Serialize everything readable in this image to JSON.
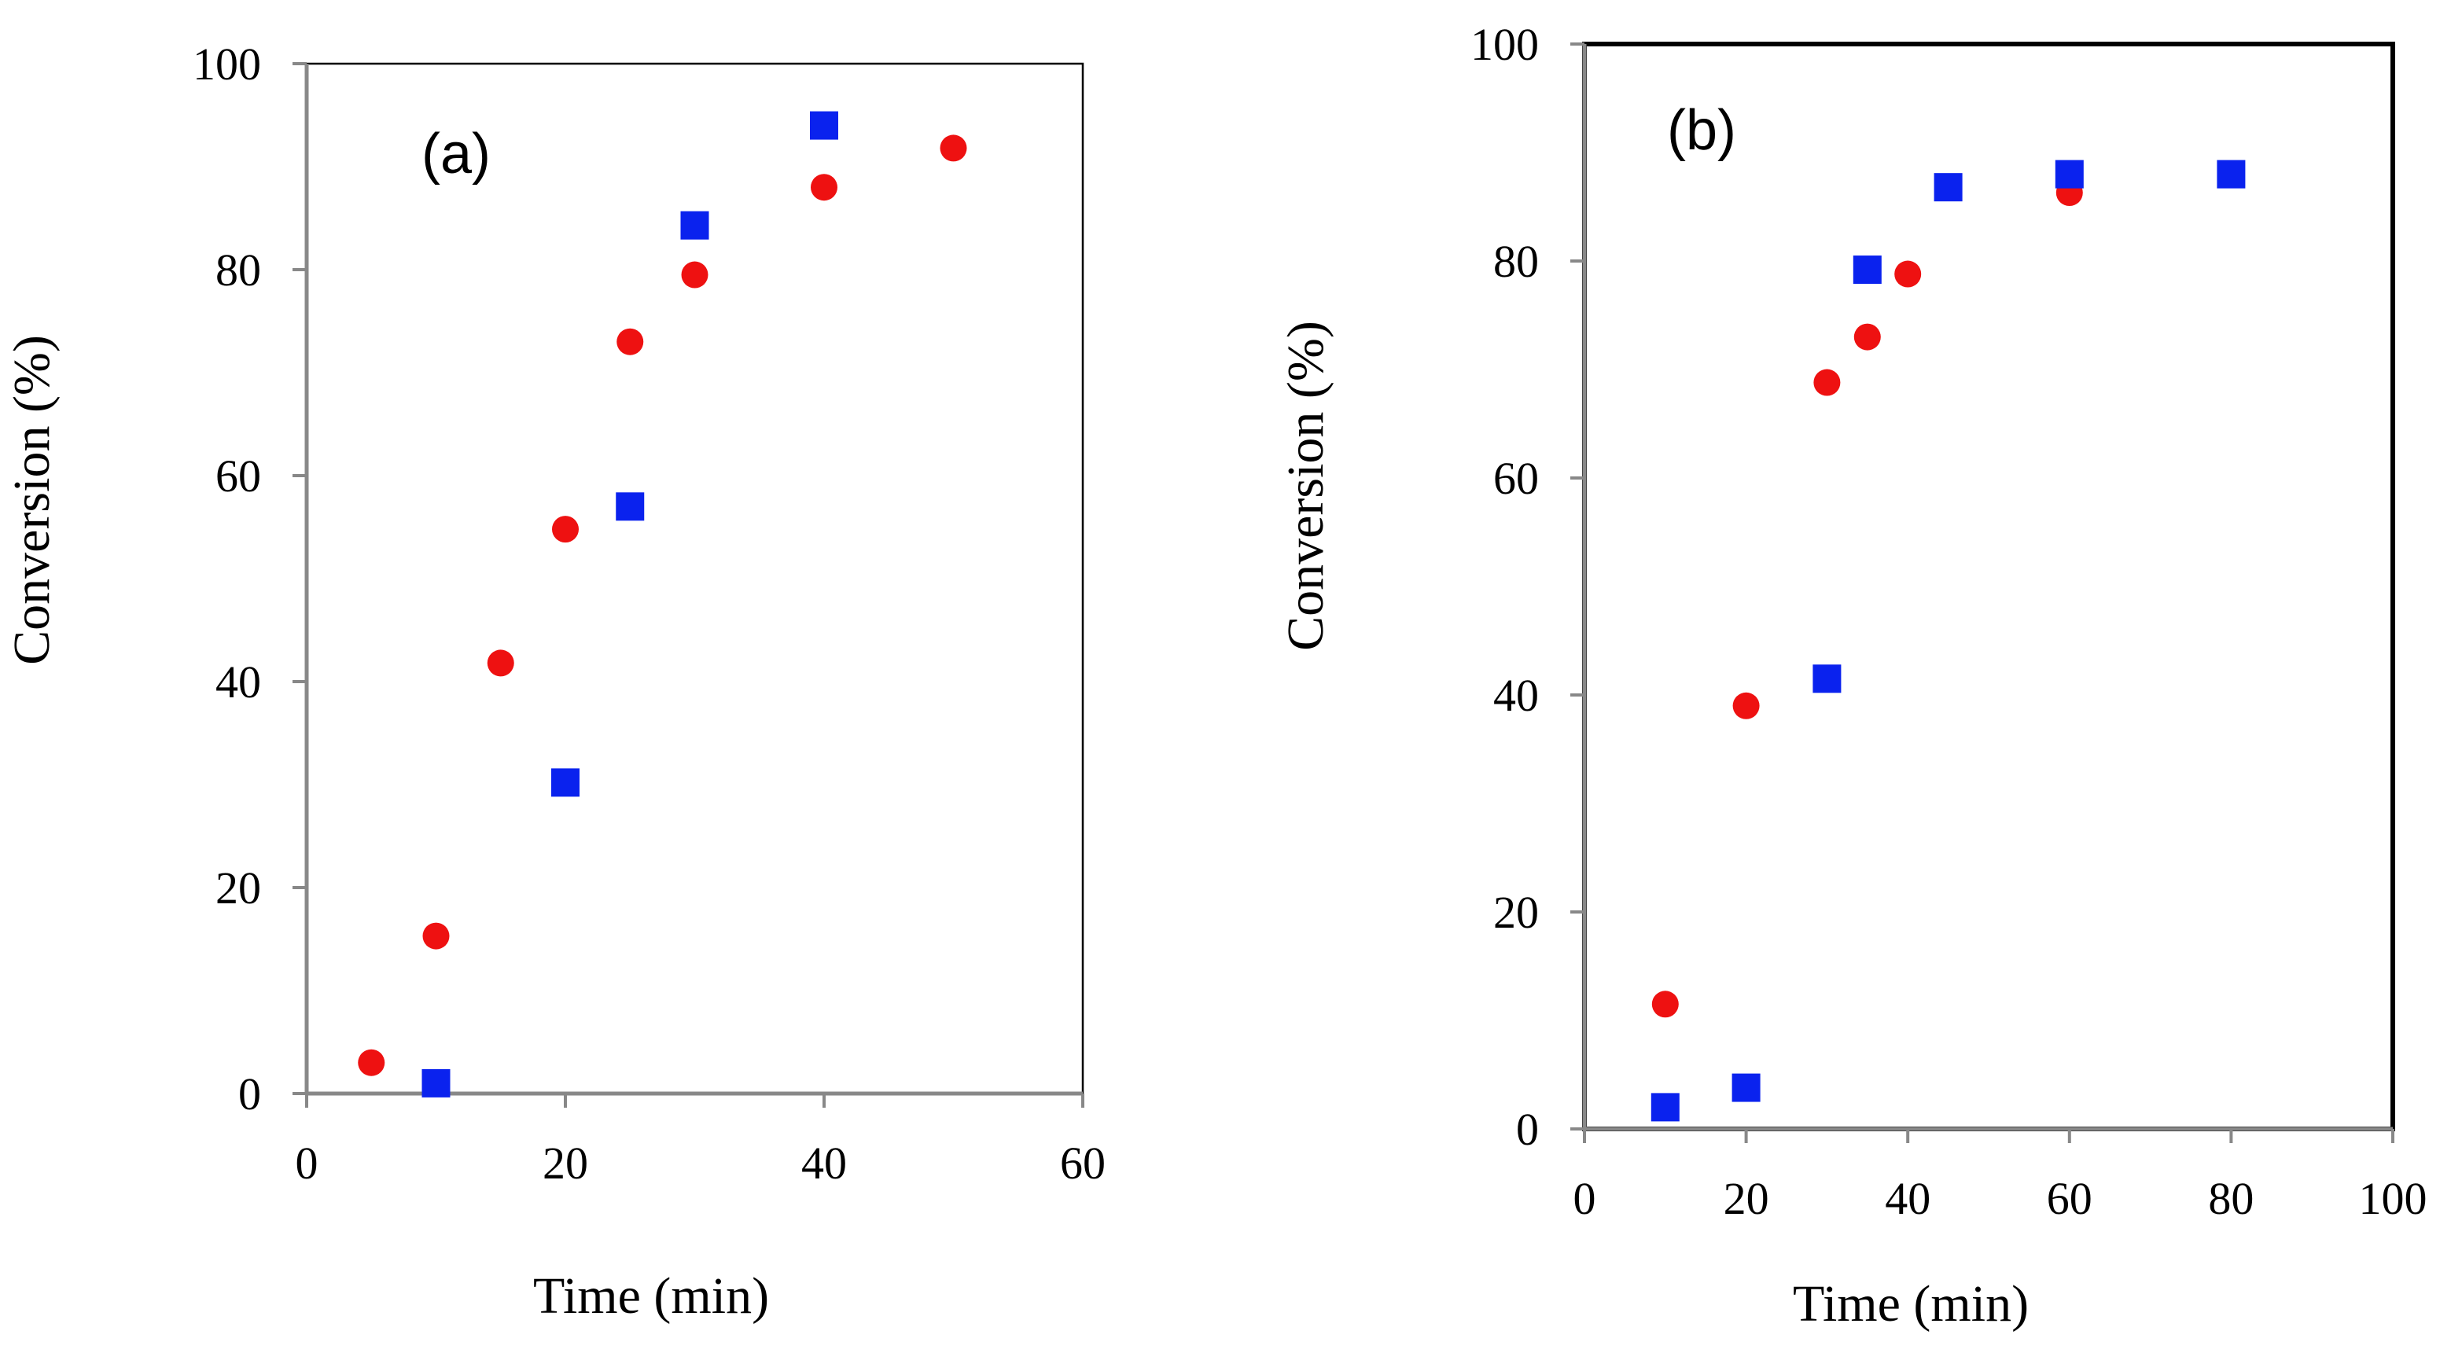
{
  "chart_data": [
    {
      "type": "scatter",
      "panel_label": "(a)",
      "xlabel": "Time (min)",
      "ylabel": "Conversion (%)",
      "xlim": [
        0,
        60
      ],
      "ylim": [
        0,
        100
      ],
      "xticks": [
        "0",
        "20",
        "40",
        "60"
      ],
      "yticks": [
        "0",
        "20",
        "40",
        "60",
        "80",
        "100"
      ],
      "grid": false,
      "series": [
        {
          "name": "circles",
          "marker": "circle",
          "color": "#ee1111",
          "points": [
            [
              5,
              3
            ],
            [
              10,
              15.3
            ],
            [
              15,
              41.8
            ],
            [
              20,
              54.8
            ],
            [
              25,
              73
            ],
            [
              30,
              79.5
            ],
            [
              40,
              88
            ],
            [
              50,
              91.8
            ]
          ]
        },
        {
          "name": "squares",
          "marker": "square",
          "color": "#0a22ee",
          "points": [
            [
              10,
              1
            ],
            [
              20,
              30.2
            ],
            [
              25,
              57
            ],
            [
              30,
              84.3
            ],
            [
              40,
              94
            ]
          ]
        }
      ]
    },
    {
      "type": "scatter",
      "panel_label": "(b)",
      "xlabel": "Time (min)",
      "ylabel": "Conversion (%)",
      "xlim": [
        0,
        100
      ],
      "ylim": [
        0,
        100
      ],
      "xticks": [
        "0",
        "20",
        "40",
        "60",
        "80",
        "100"
      ],
      "yticks": [
        "0",
        "20",
        "40",
        "60",
        "80",
        "100"
      ],
      "grid": false,
      "series": [
        {
          "name": "circles",
          "marker": "circle",
          "color": "#ee1111",
          "points": [
            [
              10,
              11.5
            ],
            [
              20,
              39
            ],
            [
              30,
              68.8
            ],
            [
              35,
              73
            ],
            [
              40,
              78.8
            ],
            [
              60,
              86.3
            ]
          ]
        },
        {
          "name": "squares",
          "marker": "square",
          "color": "#0a22ee",
          "points": [
            [
              10,
              2
            ],
            [
              20,
              3.8
            ],
            [
              30,
              41.5
            ],
            [
              35,
              79.2
            ],
            [
              45,
              86.8
            ],
            [
              60,
              88
            ],
            [
              80,
              88
            ]
          ]
        }
      ]
    }
  ]
}
